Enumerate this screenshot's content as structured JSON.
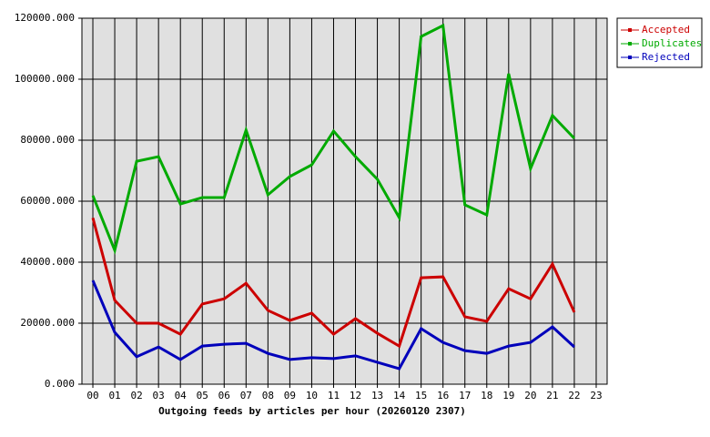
{
  "chart_data": {
    "type": "line",
    "xlabel": "Outgoing feeds by articles per hour (20260120 2307)",
    "categories": [
      "00",
      "01",
      "02",
      "03",
      "04",
      "05",
      "06",
      "07",
      "08",
      "09",
      "10",
      "11",
      "12",
      "13",
      "14",
      "15",
      "16",
      "17",
      "18",
      "19",
      "20",
      "21",
      "22",
      "23"
    ],
    "series": [
      {
        "name": "Accepted",
        "color": "#cc0000",
        "values": [
          54500,
          27500,
          20000,
          20000,
          16400,
          26300,
          28000,
          33100,
          24200,
          20900,
          23300,
          16400,
          21500,
          16700,
          12500,
          34900,
          35200,
          22100,
          20600,
          31300,
          28000,
          39400,
          23600,
          null
        ]
      },
      {
        "name": "Duplicates",
        "color": "#00aa00",
        "values": [
          61800,
          43900,
          73100,
          74600,
          59100,
          61200,
          61200,
          83300,
          62100,
          68100,
          71900,
          83000,
          74600,
          67200,
          54600,
          114000,
          117600,
          58800,
          55500,
          101800,
          70700,
          88100,
          80600,
          null
        ]
      },
      {
        "name": "Rejected",
        "color": "#0000bb",
        "values": [
          34000,
          17000,
          9000,
          12200,
          8100,
          12500,
          13100,
          13400,
          10100,
          8100,
          8700,
          8400,
          9300,
          7200,
          5100,
          18200,
          13700,
          11000,
          10100,
          12500,
          13700,
          18800,
          12200,
          null
        ]
      }
    ],
    "ylim": [
      0,
      120000
    ],
    "yticks": [
      {
        "value": 0,
        "label": "0.000"
      },
      {
        "value": 20000,
        "label": "20000.000"
      },
      {
        "value": 40000,
        "label": "40000.000"
      },
      {
        "value": 60000,
        "label": "60000.000"
      },
      {
        "value": 80000,
        "label": "80000.000"
      },
      {
        "value": 100000,
        "label": "100000.000"
      },
      {
        "value": 120000,
        "label": "120000.000"
      }
    ],
    "grid": true,
    "legend": "right"
  }
}
